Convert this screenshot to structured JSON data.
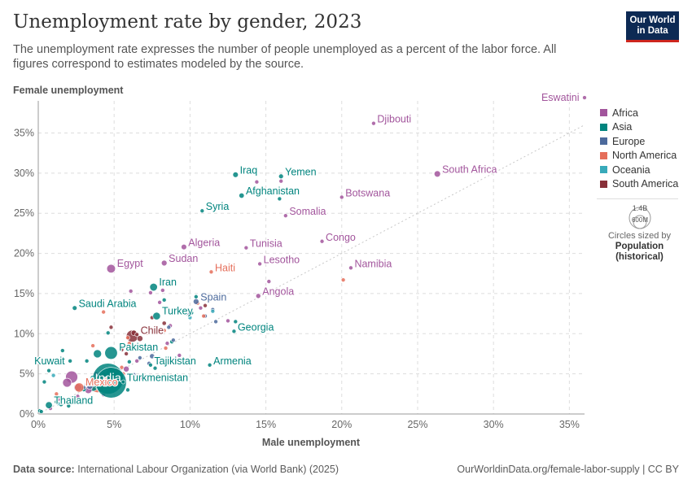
{
  "header": {
    "title": "Unemployment rate by gender, 2023",
    "subtitle": "The unemployment rate expresses the number of people unemployed as a percent of the labor force. All figures correspond to estimates modeled by the source.",
    "logo_line1": "Our World",
    "logo_line2": "in Data"
  },
  "footer": {
    "source_label": "Data source:",
    "source_text": "International Labour Organization (via World Bank) (2025)",
    "url": "OurWorldinData.org/female-labor-supply | CC BY"
  },
  "size_legend": {
    "big_label": "1.4B",
    "small_label": "600M",
    "caption_line1": "Circles sized by",
    "caption_line2": "Population",
    "caption_line3": "(historical)"
  },
  "colors": {
    "Africa": "#a2559c",
    "Asia": "#00847e",
    "Europe": "#4c6a9c",
    "North America": "#e56e5a",
    "Oceania": "#38aaba",
    "South America": "#883039"
  },
  "chart_data": {
    "type": "scatter",
    "title": "Unemployment rate by gender, 2023",
    "xlabel": "Male unemployment",
    "ylabel": "Female unemployment",
    "xlim": [
      0,
      36
    ],
    "ylim": [
      0,
      39
    ],
    "x_ticks": [
      0,
      5,
      10,
      15,
      20,
      25,
      30,
      35
    ],
    "x_tick_labels": [
      "0%",
      "5%",
      "10%",
      "15%",
      "20%",
      "25%",
      "30%",
      "35%"
    ],
    "y_ticks": [
      0,
      5,
      10,
      15,
      20,
      25,
      30,
      35
    ],
    "y_tick_labels": [
      "0%",
      "5%",
      "10%",
      "15%",
      "20%",
      "25%",
      "30%",
      "35%"
    ],
    "legend": [
      "Africa",
      "Asia",
      "Europe",
      "North America",
      "Oceania",
      "South America"
    ],
    "legend_position": "right",
    "reference_line": "y = x",
    "labeled_points": [
      {
        "name": "Eswatini",
        "region": "Africa",
        "x": 36.0,
        "y": 39.4,
        "pop": 1.2,
        "label_side": "left"
      },
      {
        "name": "Djibouti",
        "region": "Africa",
        "x": 22.1,
        "y": 36.2,
        "pop": 1.1,
        "label_side": "right"
      },
      {
        "name": "South Africa",
        "region": "Africa",
        "x": 26.3,
        "y": 29.9,
        "pop": 60,
        "label_side": "right"
      },
      {
        "name": "Iraq",
        "region": "Asia",
        "x": 13.0,
        "y": 29.8,
        "pop": 45,
        "label_side": "right"
      },
      {
        "name": "Yemen",
        "region": "Asia",
        "x": 16.0,
        "y": 29.6,
        "pop": 34,
        "label_side": "right"
      },
      {
        "name": "Afghanistan",
        "region": "Asia",
        "x": 13.4,
        "y": 27.2,
        "pop": 41,
        "label_side": "right"
      },
      {
        "name": "Botswana",
        "region": "Africa",
        "x": 20.0,
        "y": 27.0,
        "pop": 2.5,
        "label_side": "right"
      },
      {
        "name": "Syria",
        "region": "Asia",
        "x": 10.8,
        "y": 25.3,
        "pop": 23,
        "label_side": "right"
      },
      {
        "name": "Somalia",
        "region": "Africa",
        "x": 16.3,
        "y": 24.7,
        "pop": 18,
        "label_side": "right"
      },
      {
        "name": "Algeria",
        "region": "Africa",
        "x": 9.6,
        "y": 20.8,
        "pop": 45,
        "label_side": "right"
      },
      {
        "name": "Tunisia",
        "region": "Africa",
        "x": 13.7,
        "y": 20.7,
        "pop": 12,
        "label_side": "right"
      },
      {
        "name": "Congo",
        "region": "Africa",
        "x": 18.7,
        "y": 21.5,
        "pop": 6,
        "label_side": "right"
      },
      {
        "name": "Egypt",
        "region": "Africa",
        "x": 4.8,
        "y": 18.1,
        "pop": 112,
        "label_side": "right"
      },
      {
        "name": "Sudan",
        "region": "Africa",
        "x": 8.3,
        "y": 18.8,
        "pop": 48,
        "label_side": "right"
      },
      {
        "name": "Lesotho",
        "region": "Africa",
        "x": 14.6,
        "y": 18.7,
        "pop": 2.3,
        "label_side": "right"
      },
      {
        "name": "Haiti",
        "region": "North America",
        "x": 11.4,
        "y": 17.7,
        "pop": 11.7,
        "label_side": "right"
      },
      {
        "name": "Namibia",
        "region": "Africa",
        "x": 20.6,
        "y": 18.2,
        "pop": 2.6,
        "label_side": "right"
      },
      {
        "name": "Iran",
        "region": "Asia",
        "x": 7.6,
        "y": 15.8,
        "pop": 89,
        "label_side": "right"
      },
      {
        "name": "Angola",
        "region": "Africa",
        "x": 14.5,
        "y": 14.7,
        "pop": 36,
        "label_side": "right"
      },
      {
        "name": "Spain",
        "region": "Europe",
        "x": 10.4,
        "y": 14.0,
        "pop": 48,
        "label_side": "right"
      },
      {
        "name": "Saudi Arabia",
        "region": "Asia",
        "x": 2.4,
        "y": 13.2,
        "pop": 33,
        "label_side": "right"
      },
      {
        "name": "Turkey",
        "region": "Asia",
        "x": 7.8,
        "y": 12.2,
        "pop": 86,
        "label_side": "right"
      },
      {
        "name": "Georgia",
        "region": "Asia",
        "x": 12.9,
        "y": 10.3,
        "pop": 3.7,
        "label_side": "right"
      },
      {
        "name": "Chile",
        "region": "South America",
        "x": 6.5,
        "y": 9.9,
        "pop": 19.6,
        "label_side": "right"
      },
      {
        "name": "Pakistan",
        "region": "Asia",
        "x": 4.8,
        "y": 7.6,
        "pop": 240,
        "label_side": "right"
      },
      {
        "name": "Tajikistan",
        "region": "Asia",
        "x": 7.4,
        "y": 6.1,
        "pop": 10,
        "label_side": "right"
      },
      {
        "name": "Kuwait",
        "region": "Asia",
        "x": 2.1,
        "y": 6.6,
        "pop": 4.3,
        "label_side": "left"
      },
      {
        "name": "India",
        "region": "Asia",
        "x": 4.6,
        "y": 4.4,
        "pop": 1430,
        "label_side": "center"
      },
      {
        "name": "Armenia",
        "region": "Asia",
        "x": 11.3,
        "y": 6.1,
        "pop": 2.8,
        "label_side": "right"
      },
      {
        "name": "Mexico",
        "region": "North America",
        "x": 2.7,
        "y": 3.3,
        "pop": 128,
        "label_side": "right"
      },
      {
        "name": "Turkmenistan",
        "region": "Asia",
        "x": 5.6,
        "y": 4.0,
        "pop": 6.5,
        "label_side": "right"
      },
      {
        "name": "Thailand",
        "region": "Asia",
        "x": 0.7,
        "y": 1.1,
        "pop": 72,
        "label_side": "right"
      },
      {
        "name": "China",
        "region": "Asia",
        "x": 4.8,
        "y": 3.9,
        "pop": 1410,
        "label_side": "none"
      }
    ],
    "unlabeled_points": [
      {
        "region": "Africa",
        "x": 2.2,
        "y": 4.6,
        "pop": 220
      },
      {
        "region": "Africa",
        "x": 1.9,
        "y": 3.9,
        "pop": 120
      },
      {
        "region": "Africa",
        "x": 2.6,
        "y": 3.3,
        "pop": 90
      },
      {
        "region": "Africa",
        "x": 3.3,
        "y": 3.0,
        "pop": 80
      },
      {
        "region": "Asia",
        "x": 3.6,
        "y": 3.5,
        "pop": 170
      },
      {
        "region": "Asia",
        "x": 3.9,
        "y": 7.5,
        "pop": 100
      },
      {
        "region": "Asia",
        "x": 3.2,
        "y": 6.6,
        "pop": 8
      },
      {
        "region": "Asia",
        "x": 4.9,
        "y": 5.0,
        "pop": 278
      },
      {
        "region": "Asia",
        "x": 1.6,
        "y": 7.9,
        "pop": 5
      },
      {
        "region": "Asia",
        "x": 3.0,
        "y": 3.1,
        "pop": 40
      },
      {
        "region": "Asia",
        "x": 1.5,
        "y": 1.2,
        "pop": 30
      },
      {
        "region": "Asia",
        "x": 2.0,
        "y": 1.0,
        "pop": 25
      },
      {
        "region": "Asia",
        "x": 1.2,
        "y": 1.5,
        "pop": 10
      },
      {
        "region": "Asia",
        "x": 0.4,
        "y": 4.0,
        "pop": 3
      },
      {
        "region": "Asia",
        "x": 0.7,
        "y": 5.4,
        "pop": 3
      },
      {
        "region": "Asia",
        "x": 0.1,
        "y": 0.4,
        "pop": 10
      },
      {
        "region": "Asia",
        "x": 0.2,
        "y": 0.3,
        "pop": 3
      },
      {
        "region": "Asia",
        "x": 6.0,
        "y": 6.5,
        "pop": 8
      },
      {
        "region": "Asia",
        "x": 8.8,
        "y": 9.0,
        "pop": 5
      },
      {
        "region": "Asia",
        "x": 5.9,
        "y": 3.0,
        "pop": 15
      },
      {
        "region": "Asia",
        "x": 4.6,
        "y": 10.1,
        "pop": 5
      },
      {
        "region": "Asia",
        "x": 8.3,
        "y": 14.2,
        "pop": 5
      },
      {
        "region": "Asia",
        "x": 10.1,
        "y": 12.6,
        "pop": 4
      },
      {
        "region": "Asia",
        "x": 13.0,
        "y": 11.5,
        "pop": 4
      },
      {
        "region": "Asia",
        "x": 15.9,
        "y": 26.8,
        "pop": 3
      },
      {
        "region": "Asia",
        "x": 10.4,
        "y": 14.6,
        "pop": 3
      },
      {
        "region": "Asia",
        "x": 3.6,
        "y": 4.5,
        "pop": 40
      },
      {
        "region": "Asia",
        "x": 7.7,
        "y": 5.7,
        "pop": 4
      },
      {
        "region": "Europe",
        "x": 7.5,
        "y": 7.2,
        "pop": 38
      },
      {
        "region": "Europe",
        "x": 5.2,
        "y": 4.2,
        "pop": 60
      },
      {
        "region": "Europe",
        "x": 7.4,
        "y": 8.1,
        "pop": 10
      },
      {
        "region": "Europe",
        "x": 3.4,
        "y": 3.5,
        "pop": 68
      },
      {
        "region": "Europe",
        "x": 3.0,
        "y": 3.3,
        "pop": 20
      },
      {
        "region": "Europe",
        "x": 8.6,
        "y": 10.8,
        "pop": 10
      },
      {
        "region": "Europe",
        "x": 6.7,
        "y": 7.0,
        "pop": 5
      },
      {
        "region": "Europe",
        "x": 9.8,
        "y": 12.5,
        "pop": 6
      },
      {
        "region": "Europe",
        "x": 6.3,
        "y": 4.9,
        "pop": 6
      },
      {
        "region": "Europe",
        "x": 4.9,
        "y": 4.6,
        "pop": 4
      },
      {
        "region": "Europe",
        "x": 8.9,
        "y": 9.2,
        "pop": 4
      },
      {
        "region": "Europe",
        "x": 11.0,
        "y": 12.2,
        "pop": 3
      },
      {
        "region": "Europe",
        "x": 11.7,
        "y": 11.5,
        "pop": 3
      },
      {
        "region": "Europe",
        "x": 11.5,
        "y": 13.0,
        "pop": 3
      },
      {
        "region": "Europe",
        "x": 7.3,
        "y": 6.3,
        "pop": 10
      },
      {
        "region": "Africa",
        "x": 6.5,
        "y": 6.6,
        "pop": 17
      },
      {
        "region": "Africa",
        "x": 8.7,
        "y": 11.0,
        "pop": 12
      },
      {
        "region": "Africa",
        "x": 5.8,
        "y": 5.6,
        "pop": 50
      },
      {
        "region": "Africa",
        "x": 3.8,
        "y": 5.0,
        "pop": 30
      },
      {
        "region": "Africa",
        "x": 2.6,
        "y": 2.2,
        "pop": 20
      },
      {
        "region": "Africa",
        "x": 1.3,
        "y": 1.8,
        "pop": 15
      },
      {
        "region": "Africa",
        "x": 0.8,
        "y": 0.7,
        "pop": 10
      },
      {
        "region": "Africa",
        "x": 4.3,
        "y": 2.4,
        "pop": 25
      },
      {
        "region": "Africa",
        "x": 6.8,
        "y": 4.5,
        "pop": 10
      },
      {
        "region": "Africa",
        "x": 15.7,
        "y": 14.7,
        "pop": 3
      },
      {
        "region": "Africa",
        "x": 16.0,
        "y": 29.0,
        "pop": 3
      },
      {
        "region": "Africa",
        "x": 12.5,
        "y": 11.6,
        "pop": 3
      },
      {
        "region": "Africa",
        "x": 14.4,
        "y": 28.9,
        "pop": 3
      },
      {
        "region": "Africa",
        "x": 10.7,
        "y": 13.2,
        "pop": 3
      },
      {
        "region": "Africa",
        "x": 8.0,
        "y": 13.9,
        "pop": 3
      },
      {
        "region": "Africa",
        "x": 8.5,
        "y": 8.8,
        "pop": 3
      },
      {
        "region": "Africa",
        "x": 15.2,
        "y": 16.5,
        "pop": 3
      },
      {
        "region": "Africa",
        "x": 9.3,
        "y": 7.3,
        "pop": 3
      },
      {
        "region": "Africa",
        "x": 7.4,
        "y": 15.1,
        "pop": 3
      },
      {
        "region": "Africa",
        "x": 8.2,
        "y": 15.4,
        "pop": 3
      },
      {
        "region": "Africa",
        "x": 6.1,
        "y": 15.3,
        "pop": 3
      },
      {
        "region": "North America",
        "x": 20.1,
        "y": 16.7,
        "pop": 3
      },
      {
        "region": "North America",
        "x": 10.5,
        "y": 13.8,
        "pop": 3
      },
      {
        "region": "North America",
        "x": 7.2,
        "y": 10.1,
        "pop": 3
      },
      {
        "region": "North America",
        "x": 5.6,
        "y": 5.0,
        "pop": 3
      },
      {
        "region": "North America",
        "x": 4.3,
        "y": 12.7,
        "pop": 3
      },
      {
        "region": "North America",
        "x": 3.6,
        "y": 8.5,
        "pop": 3
      },
      {
        "region": "North America",
        "x": 5.2,
        "y": 5.4,
        "pop": 3
      },
      {
        "region": "North America",
        "x": 4.0,
        "y": 3.5,
        "pop": 40
      },
      {
        "region": "North America",
        "x": 3.9,
        "y": 3.6,
        "pop": 335
      },
      {
        "region": "North America",
        "x": 5.5,
        "y": 5.8,
        "pop": 6
      },
      {
        "region": "North America",
        "x": 8.3,
        "y": 10.4,
        "pop": 3
      },
      {
        "region": "North America",
        "x": 10.9,
        "y": 12.2,
        "pop": 3
      },
      {
        "region": "North America",
        "x": 5.9,
        "y": 9.5,
        "pop": 3
      },
      {
        "region": "North America",
        "x": 1.2,
        "y": 2.5,
        "pop": 3
      },
      {
        "region": "North America",
        "x": 6.7,
        "y": 8.5,
        "pop": 10
      },
      {
        "region": "North America",
        "x": 6.0,
        "y": 8.8,
        "pop": 6
      },
      {
        "region": "North America",
        "x": 8.4,
        "y": 8.2,
        "pop": 10
      },
      {
        "region": "Oceania",
        "x": 3.7,
        "y": 4.0,
        "pop": 27
      },
      {
        "region": "Oceania",
        "x": 3.6,
        "y": 4.2,
        "pop": 5
      },
      {
        "region": "Oceania",
        "x": 1.3,
        "y": 1.3,
        "pop": 3
      },
      {
        "region": "Oceania",
        "x": 10.0,
        "y": 12.0,
        "pop": 3
      },
      {
        "region": "Oceania",
        "x": 8.0,
        "y": 7.0,
        "pop": 3
      },
      {
        "region": "Oceania",
        "x": 11.5,
        "y": 12.8,
        "pop": 3
      },
      {
        "region": "Oceania",
        "x": 1.0,
        "y": 4.8,
        "pop": 3
      },
      {
        "region": "South America",
        "x": 6.2,
        "y": 9.7,
        "pop": 215
      },
      {
        "region": "South America",
        "x": 6.7,
        "y": 9.4,
        "pop": 52
      },
      {
        "region": "South America",
        "x": 6.3,
        "y": 10.1,
        "pop": 46
      },
      {
        "region": "South America",
        "x": 4.3,
        "y": 4.9,
        "pop": 34
      },
      {
        "region": "South America",
        "x": 8.3,
        "y": 11.3,
        "pop": 28
      },
      {
        "region": "South America",
        "x": 3.2,
        "y": 3.7,
        "pop": 18
      },
      {
        "region": "South America",
        "x": 7.5,
        "y": 12.0,
        "pop": 12
      },
      {
        "region": "South America",
        "x": 5.5,
        "y": 8.0,
        "pop": 7
      },
      {
        "region": "South America",
        "x": 5.8,
        "y": 7.5,
        "pop": 3.5
      },
      {
        "region": "South America",
        "x": 11.0,
        "y": 13.5,
        "pop": 3
      },
      {
        "region": "South America",
        "x": 4.8,
        "y": 10.8,
        "pop": 3
      }
    ]
  }
}
